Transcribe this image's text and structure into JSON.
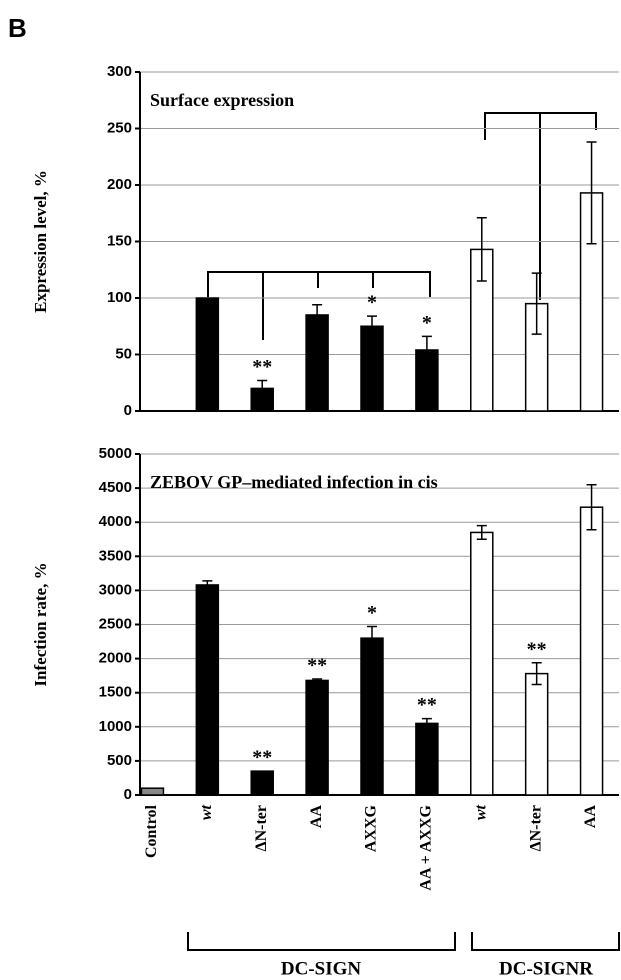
{
  "panel_label": "B",
  "groups": [
    "DC-SIGN",
    "DC-SIGNR"
  ],
  "chart_data": [
    {
      "type": "bar",
      "title": "Surface expression",
      "ylabel": "Expression level, %",
      "categories": [
        "Control",
        "wt",
        "ΔN-ter",
        "AA",
        "AXXG",
        "AA + AXXG",
        "wt",
        "ΔN-ter",
        "AA"
      ],
      "values": [
        null,
        100,
        20,
        85,
        75,
        54,
        143,
        95,
        193
      ],
      "errors": [
        null,
        null,
        7,
        9,
        9,
        12,
        28,
        27,
        45
      ],
      "annotations": [
        null,
        null,
        "**",
        null,
        "*",
        "*",
        null,
        null,
        null
      ],
      "colors": [
        "#888888",
        "#000000",
        "#000000",
        "#000000",
        "#000000",
        "#000000",
        "#ffffff",
        "#ffffff",
        "#ffffff"
      ],
      "ylim": [
        0,
        300
      ],
      "yticks": [
        0,
        50,
        100,
        150,
        200,
        250,
        300
      ],
      "grid": true
    },
    {
      "type": "bar",
      "title": "ZEBOV GP–mediated infection in cis",
      "ylabel": "Infection rate, %",
      "categories": [
        "Control",
        "wt",
        "ΔN-ter",
        "AA",
        "AXXG",
        "AA + AXXG",
        "wt",
        "ΔN-ter",
        "AA"
      ],
      "values": [
        100,
        3080,
        350,
        1680,
        2300,
        1050,
        3850,
        1780,
        4220
      ],
      "errors": [
        null,
        60,
        null,
        20,
        170,
        70,
        100,
        160,
        330
      ],
      "annotations": [
        null,
        null,
        "**",
        "**",
        "*",
        "**",
        null,
        "**",
        null
      ],
      "colors": [
        "#888888",
        "#000000",
        "#000000",
        "#000000",
        "#000000",
        "#000000",
        "#ffffff",
        "#ffffff",
        "#ffffff"
      ],
      "ylim": [
        0,
        5000
      ],
      "yticks": [
        0,
        500,
        1000,
        1500,
        2000,
        2500,
        3000,
        3500,
        4000,
        4500,
        5000
      ],
      "grid": true
    }
  ]
}
